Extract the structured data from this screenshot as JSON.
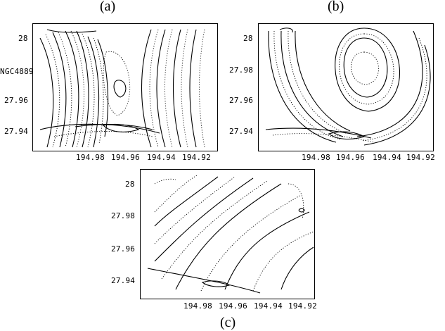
{
  "figure": {
    "panel_labels": [
      "(a)",
      "(b)",
      "(c)"
    ],
    "ytick_labels": [
      "28",
      "27.98",
      "27.96",
      "27.94"
    ],
    "xtick_labels": [
      "194.98",
      "194.96",
      "194.94",
      "194.92"
    ],
    "annotation": "NGC4889"
  }
}
